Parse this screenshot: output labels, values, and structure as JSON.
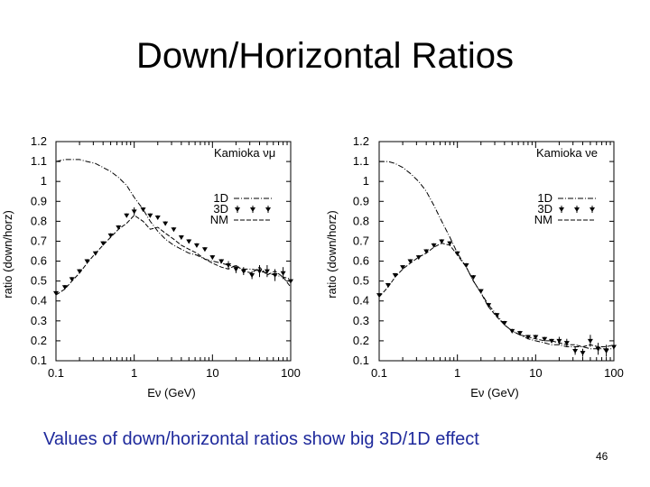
{
  "slide": {
    "title": "Down/Horizontal Ratios",
    "caption": "Values of down/horizontal ratios show big 3D/1D effect",
    "number": "46"
  },
  "colors": {
    "caption": "#1f2a9c",
    "ink": "#000000"
  },
  "chart_data": [
    {
      "type": "line",
      "title": "Kamioka νμ",
      "xlabel": "Eν (GeV)",
      "ylabel": "ratio (down/horz)",
      "x_scale": "log",
      "xlim": [
        0.1,
        100
      ],
      "ylim": [
        0.1,
        1.2
      ],
      "x_ticks": [
        "0.1",
        "1",
        "10",
        "100"
      ],
      "y_ticks": [
        "0.1",
        "0.2",
        "0.3",
        "0.4",
        "0.5",
        "0.6",
        "0.7",
        "0.8",
        "0.9",
        "1",
        "1.1",
        "1.2"
      ],
      "legend": [
        "1D",
        "3D",
        "NM"
      ],
      "legend_position": "right",
      "series": [
        {
          "name": "1D",
          "style": "dash-dot",
          "x": [
            0.1,
            0.13,
            0.16,
            0.2,
            0.25,
            0.32,
            0.4,
            0.5,
            0.63,
            0.8,
            1.0,
            1.3,
            1.6,
            2.0,
            2.5,
            3.2,
            4,
            5,
            6.3,
            8,
            10,
            13,
            16,
            20,
            25,
            32,
            40,
            50,
            63,
            80,
            100
          ],
          "y": [
            1.1,
            1.11,
            1.11,
            1.11,
            1.1,
            1.09,
            1.07,
            1.05,
            1.02,
            0.98,
            0.92,
            0.86,
            0.8,
            0.75,
            0.71,
            0.68,
            0.66,
            0.64,
            0.63,
            0.61,
            0.6,
            0.59,
            0.58,
            0.57,
            0.56,
            0.56,
            0.55,
            0.54,
            0.53,
            0.52,
            0.51
          ]
        },
        {
          "name": "3D",
          "x": [
            0.1,
            0.13,
            0.16,
            0.2,
            0.25,
            0.32,
            0.4,
            0.5,
            0.63,
            0.8,
            1.0,
            1.3,
            1.6,
            2.0,
            2.5,
            3.2,
            4,
            5,
            6.3,
            8,
            10,
            13,
            16,
            20,
            25,
            32,
            40,
            50,
            63,
            80,
            100
          ],
          "y": [
            0.44,
            0.47,
            0.51,
            0.55,
            0.6,
            0.64,
            0.69,
            0.73,
            0.77,
            0.83,
            0.85,
            0.86,
            0.83,
            0.82,
            0.79,
            0.76,
            0.72,
            0.7,
            0.68,
            0.66,
            0.62,
            0.6,
            0.58,
            0.56,
            0.55,
            0.53,
            0.55,
            0.55,
            0.53,
            0.54,
            0.5
          ],
          "err": [
            0.01,
            0.01,
            0.01,
            0.01,
            0.01,
            0.01,
            0.01,
            0.01,
            0.01,
            0.01,
            0.02,
            0.01,
            0.01,
            0.01,
            0.01,
            0.01,
            0.01,
            0.01,
            0.01,
            0.01,
            0.01,
            0.01,
            0.02,
            0.02,
            0.02,
            0.02,
            0.03,
            0.03,
            0.03,
            0.03,
            0.04
          ]
        },
        {
          "name": "NM",
          "style": "dashed",
          "x": [
            0.1,
            0.13,
            0.16,
            0.2,
            0.25,
            0.32,
            0.4,
            0.5,
            0.63,
            0.8,
            1.0,
            1.3,
            1.6,
            2.0,
            2.5,
            3.2,
            4,
            5,
            6.3,
            8,
            10,
            13,
            16,
            20,
            25,
            32,
            40,
            50,
            63,
            80,
            100
          ],
          "y": [
            0.43,
            0.46,
            0.5,
            0.54,
            0.59,
            0.64,
            0.68,
            0.72,
            0.76,
            0.79,
            0.83,
            0.8,
            0.76,
            0.77,
            0.74,
            0.71,
            0.68,
            0.66,
            0.64,
            0.61,
            0.59,
            0.57,
            0.56,
            0.58,
            0.55,
            0.54,
            0.57,
            0.53,
            0.55,
            0.52,
            0.47
          ]
        }
      ]
    },
    {
      "type": "line",
      "title": "Kamioka νe",
      "xlabel": "Eν (GeV)",
      "ylabel": "ratio (down/horz)",
      "x_scale": "log",
      "xlim": [
        0.1,
        100
      ],
      "ylim": [
        0.1,
        1.2
      ],
      "x_ticks": [
        "0.1",
        "1",
        "10",
        "100"
      ],
      "y_ticks": [
        "0.1",
        "0.2",
        "0.3",
        "0.4",
        "0.5",
        "0.6",
        "0.7",
        "0.8",
        "0.9",
        "1",
        "1.1",
        "1.2"
      ],
      "legend": [
        "1D",
        "3D",
        "NM"
      ],
      "legend_position": "right",
      "series": [
        {
          "name": "1D",
          "style": "dash-dot",
          "x": [
            0.1,
            0.13,
            0.16,
            0.2,
            0.25,
            0.32,
            0.4,
            0.5,
            0.63,
            0.8,
            1.0,
            1.3,
            1.6,
            2.0,
            2.5,
            3.2,
            4,
            5,
            6.3,
            8,
            10,
            13,
            16,
            20,
            25,
            32,
            40,
            50,
            63,
            80,
            100
          ],
          "y": [
            1.1,
            1.1,
            1.09,
            1.07,
            1.04,
            1.0,
            0.95,
            0.88,
            0.8,
            0.72,
            0.64,
            0.57,
            0.5,
            0.44,
            0.38,
            0.33,
            0.28,
            0.25,
            0.23,
            0.21,
            0.2,
            0.19,
            0.18,
            0.18,
            0.17,
            0.17,
            0.17,
            0.16,
            0.16,
            0.16,
            0.16
          ]
        },
        {
          "name": "3D",
          "x": [
            0.1,
            0.13,
            0.16,
            0.2,
            0.25,
            0.32,
            0.4,
            0.5,
            0.63,
            0.8,
            1.0,
            1.3,
            1.6,
            2.0,
            2.5,
            3.2,
            4,
            5,
            6.3,
            8,
            10,
            13,
            16,
            20,
            25,
            32,
            40,
            50,
            63,
            80,
            100
          ],
          "y": [
            0.43,
            0.48,
            0.53,
            0.57,
            0.6,
            0.62,
            0.65,
            0.68,
            0.7,
            0.69,
            0.64,
            0.58,
            0.52,
            0.45,
            0.38,
            0.33,
            0.29,
            0.25,
            0.24,
            0.22,
            0.22,
            0.21,
            0.2,
            0.2,
            0.19,
            0.15,
            0.14,
            0.2,
            0.16,
            0.15,
            0.17
          ],
          "err": [
            0.01,
            0.01,
            0.01,
            0.01,
            0.01,
            0.01,
            0.01,
            0.01,
            0.01,
            0.01,
            0.01,
            0.01,
            0.01,
            0.01,
            0.01,
            0.01,
            0.01,
            0.01,
            0.01,
            0.01,
            0.01,
            0.01,
            0.01,
            0.02,
            0.02,
            0.02,
            0.02,
            0.03,
            0.03,
            0.03,
            0.04
          ]
        },
        {
          "name": "NM",
          "style": "dashed",
          "x": [
            0.1,
            0.13,
            0.16,
            0.2,
            0.25,
            0.32,
            0.4,
            0.5,
            0.63,
            0.8,
            1.0,
            1.3,
            1.6,
            2.0,
            2.5,
            3.2,
            4,
            5,
            6.3,
            8,
            10,
            13,
            16,
            20,
            25,
            32,
            40,
            50,
            63,
            80,
            100
          ],
          "y": [
            0.42,
            0.47,
            0.52,
            0.56,
            0.59,
            0.62,
            0.64,
            0.67,
            0.69,
            0.68,
            0.63,
            0.57,
            0.5,
            0.44,
            0.37,
            0.32,
            0.28,
            0.25,
            0.23,
            0.22,
            0.21,
            0.2,
            0.2,
            0.19,
            0.18,
            0.18,
            0.17,
            0.18,
            0.17,
            0.17,
            0.18
          ]
        }
      ]
    }
  ]
}
